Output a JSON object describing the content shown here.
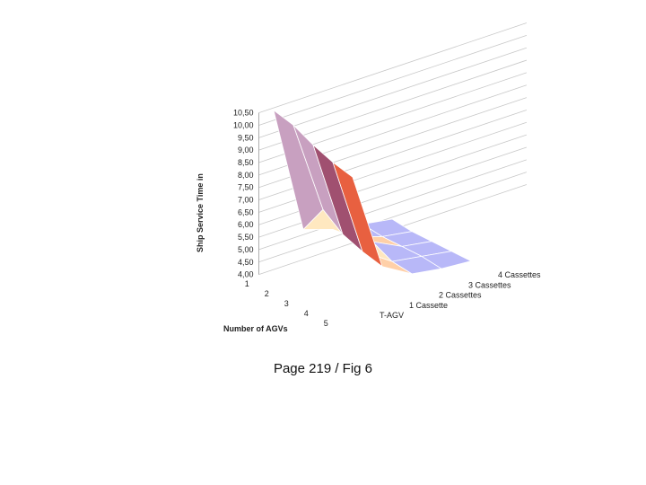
{
  "caption": "Page 219 / Fig 6",
  "chart_data": {
    "type": "surface3d",
    "title": "",
    "zlabel": "Ship Service Time in",
    "xlabel": "Number of AGVs",
    "ylabel": "",
    "x_ticks": [
      "1",
      "2",
      "3",
      "4",
      "5"
    ],
    "y_ticks": [
      "T-AGV",
      "1 Cassette",
      "2 Cassettes",
      "3 Cassettes",
      "4 Cassettes"
    ],
    "z_ticks": [
      "4,00",
      "4,50",
      "5,00",
      "5,50",
      "6,00",
      "6,50",
      "7,00",
      "7,50",
      "8,00",
      "8,50",
      "9,00",
      "9,50",
      "10,00",
      "10,50"
    ],
    "zlim": [
      4.0,
      10.5
    ],
    "x": [
      1,
      2,
      3,
      4,
      5
    ],
    "y": [
      "T-AGV",
      "1 Cassette",
      "2 Cassettes",
      "3 Cassettes",
      "4 Cassettes"
    ],
    "z": [
      [
        10.4,
        10.2,
        9.8,
        9.5,
        9.3
      ],
      [
        5.2,
        6.4,
        5.8,
        5.5,
        5.3
      ],
      [
        4.8,
        4.9,
        5.1,
        4.7,
        4.6
      ],
      [
        4.6,
        4.5,
        4.5,
        4.5,
        4.4
      ],
      [
        4.4,
        4.3,
        4.3,
        4.3,
        4.3
      ]
    ],
    "colors": [
      "#8c8cf0",
      "#b8b8f8",
      "#ffd0a8",
      "#ffe8c0",
      "#fff8c8",
      "#fff060",
      "#ffd000",
      "#ffb000",
      "#ff8020",
      "#e86040",
      "#a05070",
      "#c8a0c0",
      "#c8c0ff",
      "#90b8ff",
      "#a0e8ff",
      "#c0f0d0",
      "#40e8f0",
      "#3050e0"
    ],
    "grid": true
  }
}
